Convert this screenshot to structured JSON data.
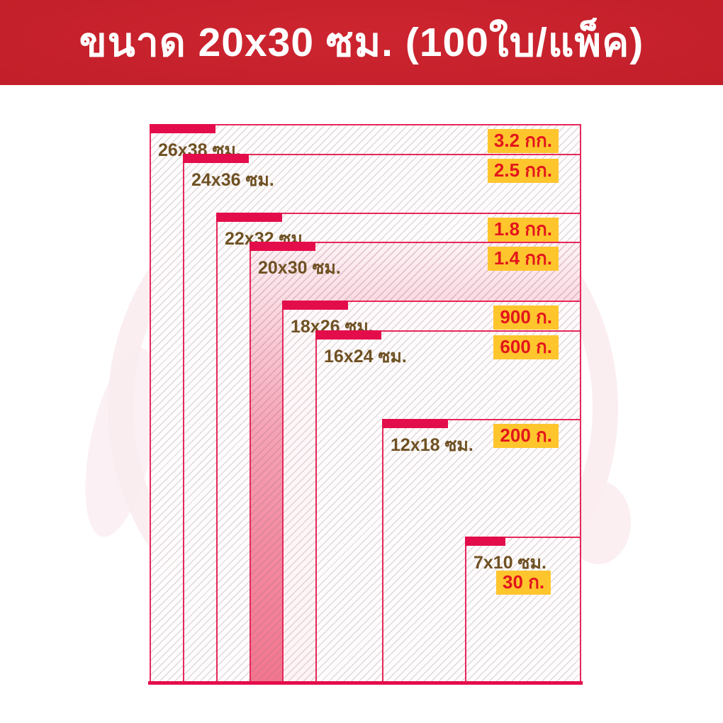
{
  "header": {
    "title": "ขนาด 20x30 ซม. (100ใบ/แพ็ค)"
  },
  "bags": [
    {
      "size": "26x38 ซม.",
      "weight": "3.2 กก.",
      "w_cm": 26,
      "h_cm": 38,
      "highlighted": false
    },
    {
      "size": "24x36 ซม.",
      "weight": "2.5 กก.",
      "w_cm": 24,
      "h_cm": 36,
      "highlighted": false
    },
    {
      "size": "22x32 ซม.",
      "weight": "1.8 กก.",
      "w_cm": 22,
      "h_cm": 32,
      "highlighted": false
    },
    {
      "size": "20x30 ซม.",
      "weight": "1.4 กก.",
      "w_cm": 20,
      "h_cm": 30,
      "highlighted": true
    },
    {
      "size": "18x26 ซม.",
      "weight": "900 ก.",
      "w_cm": 18,
      "h_cm": 26,
      "highlighted": false
    },
    {
      "size": "16x24 ซม.",
      "weight": "600 ก.",
      "w_cm": 16,
      "h_cm": 24,
      "highlighted": false
    },
    {
      "size": "12x18 ซม.",
      "weight": "200 ก.",
      "w_cm": 12,
      "h_cm": 18,
      "highlighted": false
    },
    {
      "size": "7x10 ซม.",
      "weight": "30 ก.",
      "w_cm": 7,
      "h_cm": 10,
      "highlighted": false
    }
  ],
  "colors": {
    "accent_bar": "#e40d4b",
    "rect_border": "#e5285a",
    "badge_bg": "#ffc52d",
    "badge_text": "#e3151c",
    "size_label": "#6f5123",
    "header_center": "#cd2530",
    "header_edge": "#a5161f"
  }
}
